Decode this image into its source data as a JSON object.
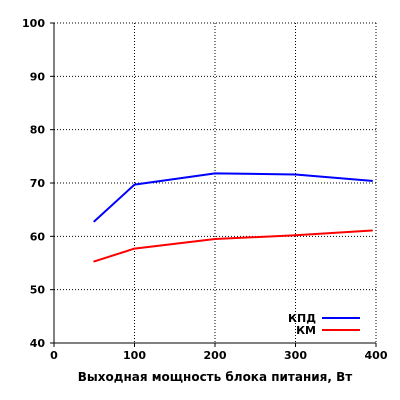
{
  "chart_data": {
    "type": "line",
    "title": "",
    "xlabel": "Выходная мощность блока питания, Вт",
    "ylabel": "",
    "xlim": [
      0,
      400
    ],
    "ylim": [
      40,
      100
    ],
    "xticks": [
      0,
      100,
      200,
      300,
      400
    ],
    "yticks": [
      40,
      50,
      60,
      70,
      80,
      90,
      100
    ],
    "grid": true,
    "legend_position": "bottom-right",
    "series": [
      {
        "name": "КПД",
        "color": "#0000ff",
        "x": [
          50,
          100,
          200,
          300,
          395
        ],
        "y": [
          62.8,
          69.7,
          71.8,
          71.6,
          70.4
        ]
      },
      {
        "name": "КМ",
        "color": "#ff0000",
        "x": [
          50,
          100,
          200,
          300,
          395
        ],
        "y": [
          55.3,
          57.7,
          59.5,
          60.2,
          61.1
        ]
      }
    ]
  }
}
